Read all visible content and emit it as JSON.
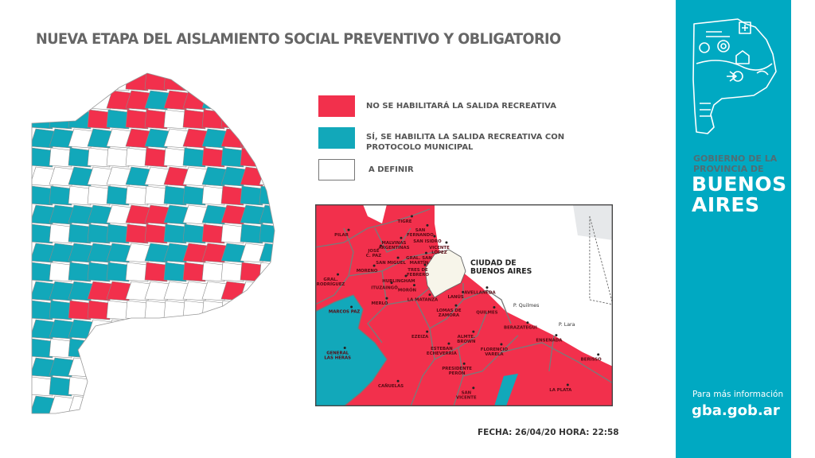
{
  "title": "NUEVA ETAPA DEL AISLAMIENTO SOCIAL PREVENTIVO Y OBLIGATORIO",
  "colors": {
    "red": "#f2304c",
    "teal": "#12a8ba",
    "white": "#ffffff",
    "sidebar": "#00a9c2"
  },
  "legend": [
    {
      "color": "red",
      "label": "NO SE HABILITARÁ LA SALIDA RECREATIVA"
    },
    {
      "color": "teal",
      "label_line1": "SÍ, SE HABILITA LA SALIDA RECREATIVA CON",
      "label_line2": "PROTOCOLO MUNICIPAL"
    },
    {
      "color": "white",
      "label": "A DEFINIR"
    }
  ],
  "inset_map": {
    "city_label_line1": "CIUDAD DE",
    "city_label_line2": "BUENOS AIRES",
    "points": [
      "P. Quilmes",
      "P. Lara"
    ],
    "municipalities": [
      "TIGRE",
      "SAN FERNANDO",
      "SAN ISIDRO",
      "VICENTE LÓPEZ",
      "PILAR",
      "MALVINAS ARGENTINAS",
      "JOSÉ C. PAZ",
      "SAN MIGUEL",
      "GRAL. SAN MARTÍN",
      "TRES DE FEBRERO",
      "HURLINGHAM",
      "MORENO",
      "ITUZAINGÓ",
      "MORÓN",
      "GRAL. RODRÍGUEZ",
      "MERLO",
      "LA MATANZA",
      "LANÚS",
      "AVELLANEDA",
      "LOMAS DE ZAMORA",
      "QUILMES",
      "MARCOS PAZ",
      "EZEIZA",
      "ALMTE. BROWN",
      "ESTEBAN ECHEVERRÍA",
      "BERAZATEGUI",
      "FLORENCIO VARELA",
      "GENERAL LAS HERAS",
      "ENSENADA",
      "BERISSO",
      "PRESIDENTE PERÓN",
      "CAÑUELAS",
      "SAN VICENTE",
      "LA PLATA"
    ]
  },
  "footer": {
    "date_label": "FECHA: 26/04/20 HORA: 22:58"
  },
  "sidebar": {
    "logo_icon": "province-illustration-logo",
    "gov_line1": "GOBIERNO DE LA",
    "gov_line2": "PROVINCIA DE",
    "name_line1": "BUENOS",
    "name_line2": "AIRES",
    "info_label": "Para más información",
    "url": "gba.gob.ar"
  }
}
